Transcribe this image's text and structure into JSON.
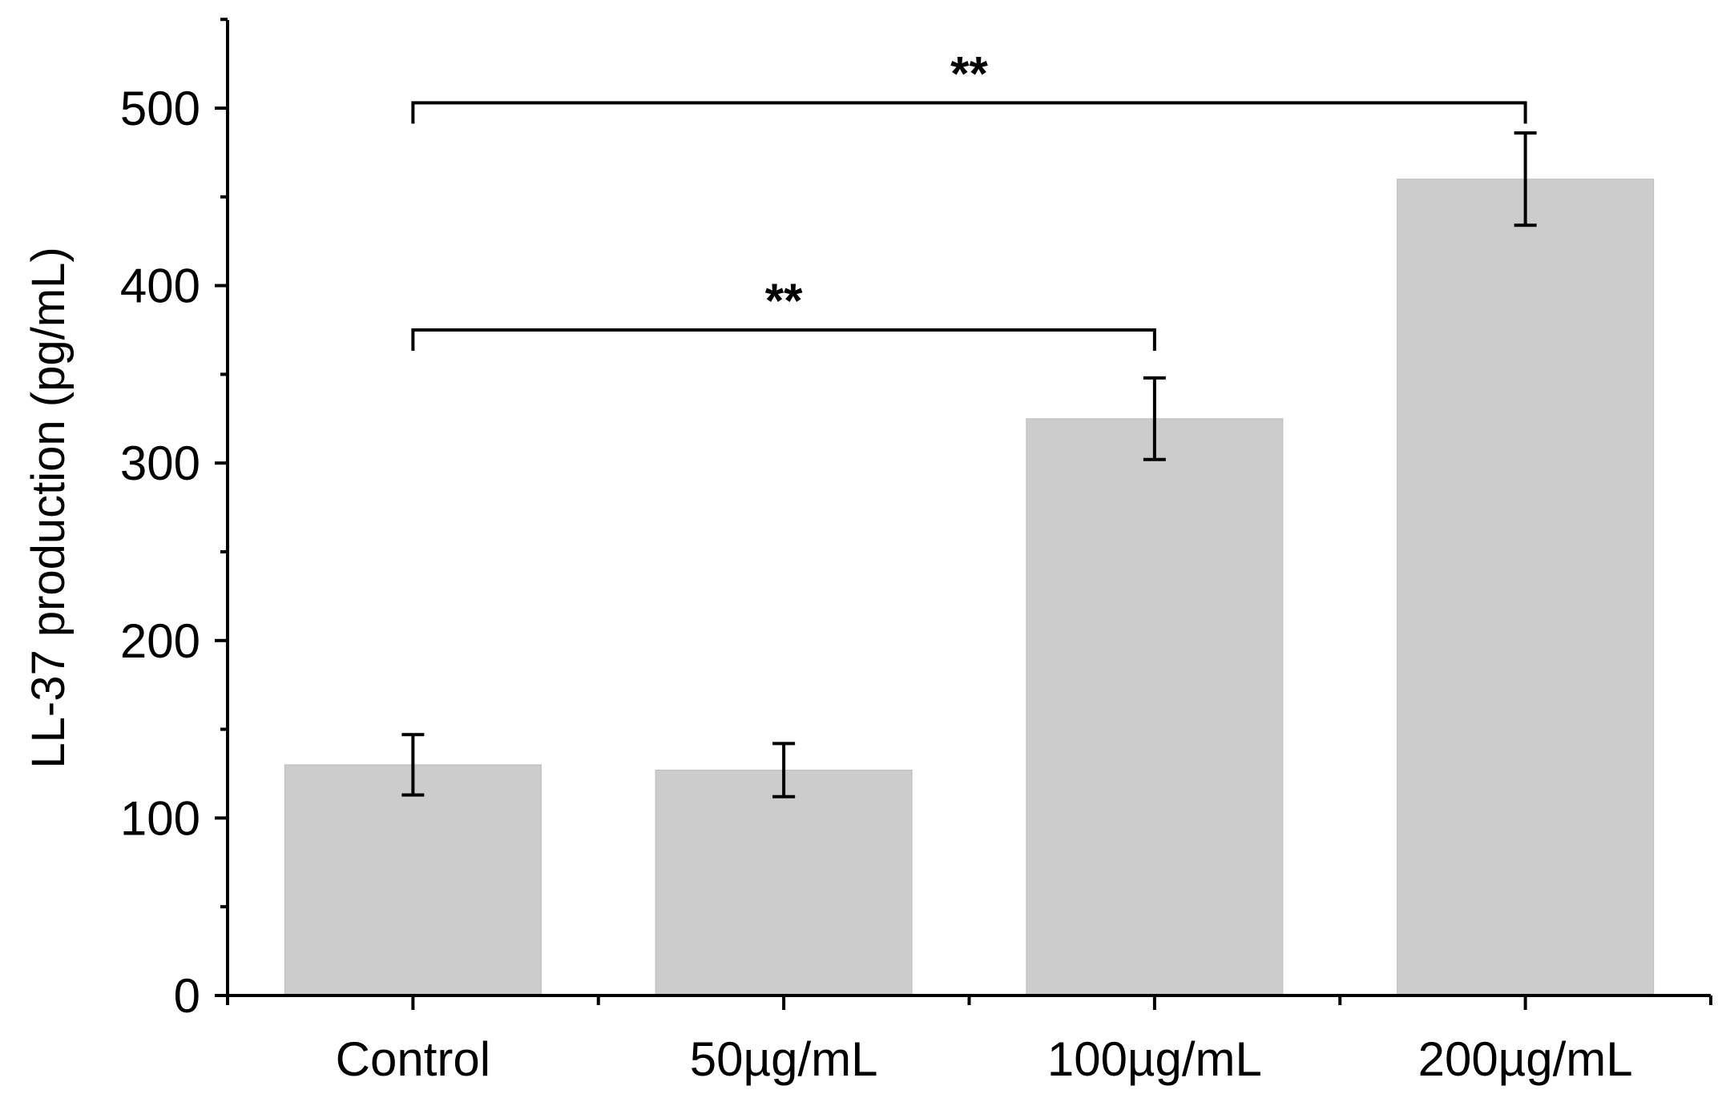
{
  "chart_data": {
    "type": "bar",
    "title": "",
    "xlabel": "",
    "ylabel": "LL-37 production (pg/mL)",
    "categories": [
      "Control",
      "50µg/mL",
      "100µg/mL",
      "200µg/mL"
    ],
    "values": [
      130,
      127,
      325,
      460
    ],
    "errors": [
      17,
      15,
      23,
      26
    ],
    "ylim": [
      0,
      550
    ],
    "yticks": [
      0,
      100,
      200,
      300,
      400,
      500
    ],
    "yticks_minor": [
      50,
      150,
      250,
      350,
      450,
      550
    ],
    "bar_color": "#cccccc",
    "axis_color": "#000000",
    "grid": false,
    "annotations": [
      {
        "from": 0,
        "to": 2,
        "label": "**",
        "y": 375
      },
      {
        "from": 0,
        "to": 3,
        "label": "**",
        "y": 503
      }
    ]
  }
}
